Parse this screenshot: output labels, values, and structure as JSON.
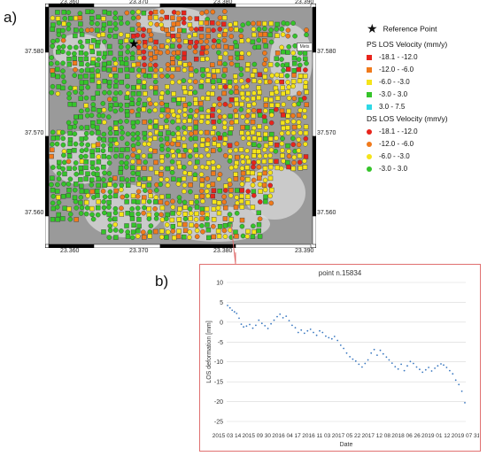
{
  "panel_a_label": "a)",
  "panel_b_label": "b)",
  "map": {
    "x_ticks": [
      "23.360",
      "23.370",
      "23.380",
      "23.390"
    ],
    "y_ticks": [
      "37.580",
      "37.570",
      "37.560"
    ],
    "scalebar_text": "Mets",
    "colors": {
      "red": "#e8241c",
      "orange": "#f07a1c",
      "yellow": "#f5e41a",
      "green": "#35c42a",
      "cyan": "#2ed8e6",
      "gray_bg": "#9a9a9a",
      "light": "#d9d9d9"
    }
  },
  "legend": {
    "reference_point": "Reference Point",
    "ps_title": "PS LOS Velocity (mm/y)",
    "ps_items": [
      {
        "label": "-18.1 - -12.0",
        "color": "#e8241c"
      },
      {
        "label": "-12.0 - -6.0",
        "color": "#f07a1c"
      },
      {
        "label": "-6.0 - -3.0",
        "color": "#f5e41a"
      },
      {
        "label": "-3.0 - 3.0",
        "color": "#35c42a"
      },
      {
        "label": "3.0 - 7.5",
        "color": "#2ed8e6"
      }
    ],
    "ds_title": "DS LOS Velocity (mm/y)",
    "ds_items": [
      {
        "label": "-18.1 - -12.0",
        "color": "#e8241c"
      },
      {
        "label": "-12.0 - -6.0",
        "color": "#f07a1c"
      },
      {
        "label": "-6.0 - -3.0",
        "color": "#f5e41a"
      },
      {
        "label": "-3.0 - 3.0",
        "color": "#35c42a"
      }
    ]
  },
  "chart_data": {
    "type": "scatter",
    "title": "point n.15834",
    "xlabel": "Date",
    "ylabel": "LOS deformation [mm]",
    "ylim": [
      -25,
      10
    ],
    "y_ticks": [
      10,
      5,
      0,
      -5,
      -10,
      -15,
      -20,
      -25
    ],
    "x_tick_labels": [
      "2015 03 14",
      "2015 09 30",
      "2016 04 17",
      "2016 11 03",
      "2017 05 22",
      "2017 12 08",
      "2018 06 26",
      "2019 01 12",
      "2019 07 31"
    ],
    "x_range": [
      "2015-03-14",
      "2019-07-31"
    ],
    "point_color": "#3a78c0",
    "series": [
      {
        "x": [
          "2015-03-20",
          "2015-04-05",
          "2015-04-20",
          "2015-05-05",
          "2015-05-20",
          "2015-06-05",
          "2015-06-20",
          "2015-07-05",
          "2015-07-25",
          "2015-08-15",
          "2015-09-05",
          "2015-09-25",
          "2015-10-15",
          "2015-11-05",
          "2015-11-25",
          "2015-12-15",
          "2016-01-05",
          "2016-01-25",
          "2016-02-15",
          "2016-03-05",
          "2016-03-25",
          "2016-04-15",
          "2016-05-05",
          "2016-05-25",
          "2016-06-15",
          "2016-07-05",
          "2016-07-25",
          "2016-08-15",
          "2016-09-05",
          "2016-09-25",
          "2016-10-15",
          "2016-11-05",
          "2016-11-25",
          "2016-12-15",
          "2017-01-05",
          "2017-01-25",
          "2017-02-15",
          "2017-03-05",
          "2017-03-25",
          "2017-04-15",
          "2017-05-05",
          "2017-05-25",
          "2017-06-15",
          "2017-07-05",
          "2017-07-25",
          "2017-08-15",
          "2017-09-05",
          "2017-09-25",
          "2017-10-15",
          "2017-11-05",
          "2017-11-25",
          "2017-12-15",
          "2018-01-05",
          "2018-01-25",
          "2018-02-15",
          "2018-03-05",
          "2018-03-25",
          "2018-04-15",
          "2018-05-05",
          "2018-05-25",
          "2018-06-15",
          "2018-07-05",
          "2018-07-25",
          "2018-08-15",
          "2018-09-05",
          "2018-09-25",
          "2018-10-15",
          "2018-11-05",
          "2018-11-25",
          "2018-12-15",
          "2019-01-05",
          "2019-01-25",
          "2019-02-15",
          "2019-03-05",
          "2019-03-25",
          "2019-04-15",
          "2019-05-05",
          "2019-05-25",
          "2019-06-15",
          "2019-07-05",
          "2019-07-25"
        ],
        "y": [
          4.2,
          3.6,
          3.0,
          2.6,
          2.2,
          1.0,
          -0.5,
          -1.2,
          -1.0,
          -0.6,
          -1.5,
          -0.8,
          0.5,
          -0.3,
          -0.9,
          -1.6,
          -0.4,
          0.5,
          1.4,
          2.0,
          1.1,
          1.5,
          0.4,
          -0.8,
          -1.4,
          -2.6,
          -2.0,
          -2.8,
          -2.2,
          -1.8,
          -2.6,
          -3.3,
          -2.2,
          -2.6,
          -3.5,
          -3.9,
          -4.2,
          -3.6,
          -4.6,
          -5.8,
          -6.6,
          -7.8,
          -8.7,
          -9.3,
          -9.8,
          -10.6,
          -11.3,
          -10.4,
          -9.5,
          -7.8,
          -6.9,
          -8.3,
          -7.1,
          -8.0,
          -8.8,
          -9.5,
          -10.3,
          -11.2,
          -11.8,
          -10.6,
          -12.2,
          -11.0,
          -9.9,
          -10.4,
          -11.3,
          -11.9,
          -12.6,
          -12.0,
          -11.4,
          -12.3,
          -11.6,
          -11.0,
          -10.5,
          -10.8,
          -11.4,
          -12.2,
          -13.0,
          -14.6,
          -15.7,
          -17.4,
          -20.3
        ]
      }
    ]
  }
}
